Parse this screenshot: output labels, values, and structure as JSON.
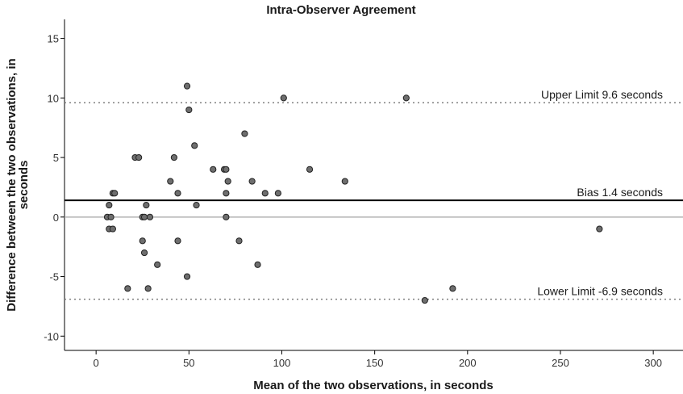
{
  "chart_data": {
    "type": "scatter",
    "title": "Intra-Observer Agreement",
    "xlabel": "Mean of the two observations, in seconds",
    "ylabel_lines": [
      "Difference between the two observations, in",
      "seconds"
    ],
    "xlim": [
      -17,
      316
    ],
    "ylim": [
      -11.2,
      16.6
    ],
    "xticks": [
      0,
      50,
      100,
      150,
      200,
      250,
      300
    ],
    "yticks": [
      -10,
      -5,
      0,
      5,
      10,
      15
    ],
    "grid": false,
    "reference_lines": [
      {
        "name": "upper-limit",
        "y": 9.6,
        "label": "Upper Limit 9.6 seconds",
        "style": "dotted",
        "color": "#7f7f7f"
      },
      {
        "name": "bias",
        "y": 1.4,
        "label": "Bias 1.4 seconds",
        "style": "solid",
        "color": "#000000"
      },
      {
        "name": "zero",
        "y": 0,
        "label": "",
        "style": "solid",
        "color": "#b3b3b3"
      },
      {
        "name": "lower-limit",
        "y": -6.9,
        "label": "Lower Limit -6.9 seconds",
        "style": "dotted",
        "color": "#7f7f7f"
      }
    ],
    "point_color": "#6e6e6e",
    "points": [
      {
        "x": 6,
        "y": 0
      },
      {
        "x": 7,
        "y": 1
      },
      {
        "x": 7,
        "y": -1
      },
      {
        "x": 8,
        "y": 0
      },
      {
        "x": 9,
        "y": 2
      },
      {
        "x": 9,
        "y": -1
      },
      {
        "x": 10,
        "y": 2
      },
      {
        "x": 21,
        "y": 5
      },
      {
        "x": 23,
        "y": 5
      },
      {
        "x": 17,
        "y": -6
      },
      {
        "x": 25,
        "y": 0
      },
      {
        "x": 26,
        "y": 0
      },
      {
        "x": 25,
        "y": -2
      },
      {
        "x": 26,
        "y": -3
      },
      {
        "x": 27,
        "y": 1
      },
      {
        "x": 28,
        "y": -6
      },
      {
        "x": 29,
        "y": 0
      },
      {
        "x": 33,
        "y": -4
      },
      {
        "x": 40,
        "y": 3
      },
      {
        "x": 42,
        "y": 5
      },
      {
        "x": 44,
        "y": 2
      },
      {
        "x": 44,
        "y": -2
      },
      {
        "x": 49,
        "y": 11
      },
      {
        "x": 50,
        "y": 9
      },
      {
        "x": 49,
        "y": -5
      },
      {
        "x": 53,
        "y": 6
      },
      {
        "x": 54,
        "y": 1
      },
      {
        "x": 63,
        "y": 4
      },
      {
        "x": 69,
        "y": 4
      },
      {
        "x": 70,
        "y": 4
      },
      {
        "x": 70,
        "y": 2
      },
      {
        "x": 70,
        "y": 0
      },
      {
        "x": 71,
        "y": 3
      },
      {
        "x": 77,
        "y": -2
      },
      {
        "x": 80,
        "y": 7
      },
      {
        "x": 84,
        "y": 3
      },
      {
        "x": 87,
        "y": -4
      },
      {
        "x": 91,
        "y": 2
      },
      {
        "x": 98,
        "y": 2
      },
      {
        "x": 101,
        "y": 10
      },
      {
        "x": 115,
        "y": 4
      },
      {
        "x": 134,
        "y": 3
      },
      {
        "x": 167,
        "y": 10
      },
      {
        "x": 177,
        "y": -7
      },
      {
        "x": 192,
        "y": -6
      },
      {
        "x": 271,
        "y": -1
      }
    ]
  }
}
